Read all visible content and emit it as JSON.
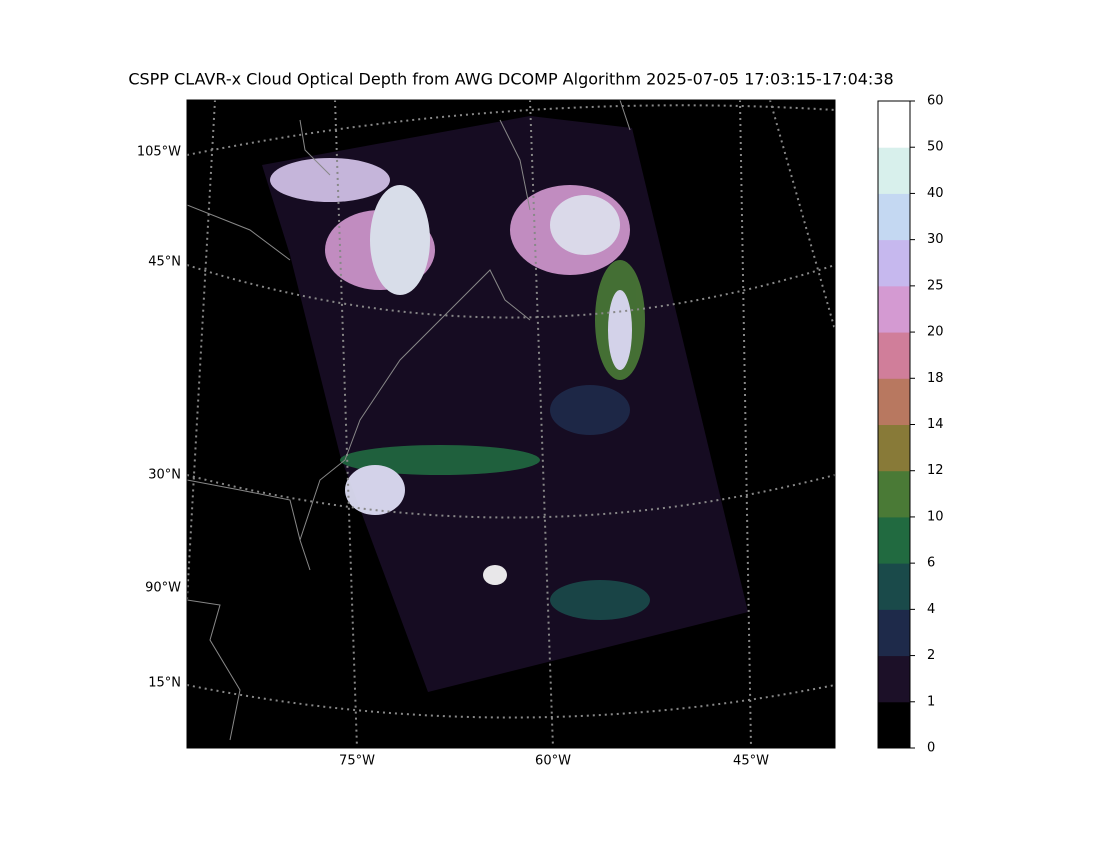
{
  "title": "CSPP CLAVR-x Cloud Optical Depth from AWG DCOMP Algorithm 2025-07-05 17:03:15-17:04:38",
  "map": {
    "left_labels": [
      "105°W",
      "45°N",
      "30°N",
      "90°W",
      "15°N"
    ],
    "bottom_labels": [
      "75°W",
      "60°W",
      "45°W"
    ]
  },
  "colorbar": {
    "levels": [
      0,
      1,
      2,
      4,
      6,
      10,
      12,
      14,
      18,
      20,
      25,
      30,
      40,
      50,
      60
    ],
    "colors": [
      "#000000",
      "#1c1028",
      "#1e2a4a",
      "#1a4a4a",
      "#216a40",
      "#4a7a36",
      "#887a38",
      "#b87860",
      "#d07e9a",
      "#d49ad2",
      "#c6b8ee",
      "#c4d8f2",
      "#d8f0ec",
      "#ffffff"
    ]
  }
}
